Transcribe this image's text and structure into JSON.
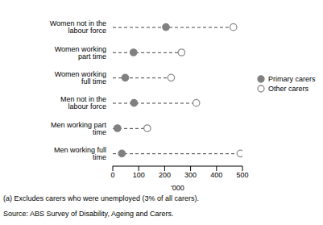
{
  "chart_data": {
    "type": "dot",
    "orientation": "horizontal",
    "categories": [
      "Women not in the labour force",
      "Women working part time",
      "Women working full time",
      "Men not in the labour force",
      "Men working part time",
      "Men working full time"
    ],
    "series": [
      {
        "name": "Primary carers",
        "color": "#808080",
        "marker": "circle",
        "values": [
          205,
          80,
          48,
          82,
          18,
          35
        ]
      },
      {
        "name": "Other carers",
        "color": "#8c8c8c",
        "marker": "open_circle",
        "line_style": "dashed",
        "values": [
          465,
          265,
          225,
          322,
          133,
          492
        ]
      }
    ],
    "xlabel": "'000",
    "xlim": [
      0,
      500
    ],
    "xticks": [
      0,
      100,
      200,
      300,
      400,
      500
    ],
    "legend": "right",
    "annotations": [
      "(a) Excludes carers who were unemployed (3% of all carers).",
      "Source: ABS Survey of Disability, Ageing and Carers."
    ]
  }
}
